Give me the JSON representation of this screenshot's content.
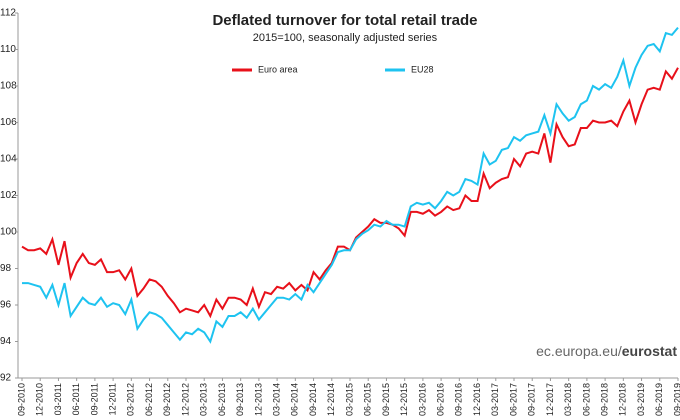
{
  "chart_data": {
    "type": "line",
    "title": "Deflated turnover for total retail trade",
    "subtitle": "2015=100, seasonally adjusted series",
    "source": [
      "ec.europa.eu/",
      "eurostat"
    ],
    "categories": [
      "09-2010",
      null,
      null,
      "12-2010",
      null,
      null,
      "03-2011",
      null,
      null,
      "06-2011",
      null,
      null,
      "09-2011",
      null,
      null,
      "12-2011",
      null,
      null,
      "03-2012",
      null,
      null,
      "06-2012",
      null,
      null,
      "09-2012",
      null,
      null,
      "12-2012",
      null,
      null,
      "03-2013",
      null,
      null,
      "06-2013",
      null,
      null,
      "09-2013",
      null,
      null,
      "12-2013",
      null,
      null,
      "03-2014",
      null,
      null,
      "06-2014",
      null,
      null,
      "09-2014",
      null,
      null,
      "12-2014",
      null,
      null,
      "03-2015",
      null,
      null,
      "06-2015",
      null,
      null,
      "09-2015",
      null,
      null,
      "12-2015",
      null,
      null,
      "03-2016",
      null,
      null,
      "06-2016",
      null,
      null,
      "09-2016",
      null,
      null,
      "12-2016",
      null,
      null,
      "03-2017",
      null,
      null,
      "06-2017",
      null,
      null,
      "09-2017",
      null,
      null,
      "12-2017",
      null,
      null,
      "03-2018",
      null,
      null,
      "06-2018",
      null,
      null,
      "09-2018",
      null,
      null,
      "12-2018",
      null,
      null,
      "03-2019",
      null,
      null,
      "06-2019",
      null,
      null,
      "09-2019"
    ],
    "series": [
      {
        "name": "Euro area",
        "color": "#e8101a",
        "values": [
          99.2,
          99.0,
          99.0,
          99.1,
          98.8,
          99.6,
          98.2,
          99.5,
          97.5,
          98.3,
          98.8,
          98.3,
          98.2,
          98.5,
          97.8,
          97.8,
          97.9,
          97.4,
          98.0,
          96.5,
          96.9,
          97.4,
          97.3,
          97.0,
          96.5,
          96.1,
          95.6,
          95.8,
          95.7,
          95.6,
          96.0,
          95.4,
          96.3,
          95.8,
          96.4,
          96.4,
          96.3,
          96.0,
          96.9,
          95.9,
          96.7,
          96.6,
          97.0,
          96.9,
          97.2,
          96.8,
          97.1,
          96.8,
          97.8,
          97.4,
          97.9,
          98.3,
          99.2,
          99.2,
          99.0,
          99.7,
          100.0,
          100.3,
          100.7,
          100.5,
          100.5,
          100.4,
          100.2,
          99.8,
          101.1,
          101.1,
          101.0,
          101.2,
          100.9,
          101.1,
          101.4,
          101.2,
          101.3,
          102.0,
          101.7,
          101.7,
          103.2,
          102.4,
          102.7,
          102.9,
          103.0,
          104.0,
          103.6,
          104.3,
          104.4,
          104.3,
          105.4,
          103.8,
          105.9,
          105.2,
          104.7,
          104.8,
          105.7,
          105.7,
          106.1,
          106.0,
          106.0,
          106.1,
          105.8,
          106.6,
          107.2,
          106.0,
          107.0,
          107.8,
          107.9,
          107.8,
          108.8,
          108.4,
          109.0
        ]
      },
      {
        "name": "EU28",
        "color": "#1ec3f0",
        "values": [
          97.2,
          97.2,
          97.1,
          97.0,
          96.4,
          97.1,
          96.0,
          97.2,
          95.4,
          95.9,
          96.4,
          96.1,
          96.0,
          96.4,
          95.9,
          96.1,
          96.0,
          95.5,
          96.3,
          94.7,
          95.2,
          95.6,
          95.5,
          95.3,
          94.9,
          94.5,
          94.1,
          94.5,
          94.4,
          94.7,
          94.5,
          94.0,
          95.1,
          94.8,
          95.4,
          95.4,
          95.6,
          95.3,
          95.8,
          95.2,
          95.6,
          96.0,
          96.4,
          96.4,
          96.3,
          96.6,
          96.3,
          97.1,
          96.7,
          97.2,
          97.7,
          98.2,
          98.9,
          99.0,
          99.0,
          99.6,
          99.9,
          100.1,
          100.4,
          100.3,
          100.6,
          100.4,
          100.4,
          100.3,
          101.4,
          101.6,
          101.5,
          101.6,
          101.3,
          101.7,
          102.2,
          102.0,
          102.2,
          102.9,
          102.8,
          102.6,
          104.3,
          103.7,
          103.9,
          104.5,
          104.6,
          105.2,
          105.0,
          105.3,
          105.4,
          105.5,
          106.4,
          105.4,
          107.0,
          106.5,
          106.1,
          106.3,
          107.0,
          107.2,
          108.0,
          107.8,
          108.1,
          107.9,
          108.5,
          109.4,
          108.0,
          109.0,
          109.7,
          110.2,
          110.3,
          109.9,
          110.9,
          110.8,
          111.2
        ]
      }
    ],
    "ylim": [
      92,
      112
    ],
    "yticks": [
      92,
      94,
      96,
      98,
      100,
      102,
      104,
      106,
      108,
      110,
      112
    ],
    "grid": false
  }
}
